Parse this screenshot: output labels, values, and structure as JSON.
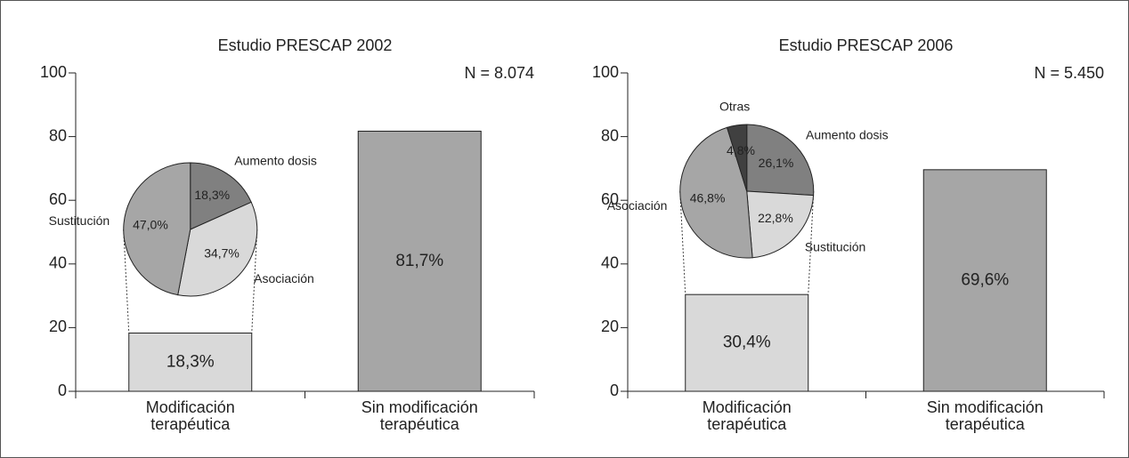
{
  "chart_data": [
    {
      "type": "bar",
      "title": "Estudio PRESCAP 2002",
      "annotation": "N = 8.074",
      "categories": [
        "Modificación terapéutica",
        "Sin modificación terapéutica"
      ],
      "values": [
        18.3,
        81.7
      ],
      "value_labels": [
        "18,3%",
        "81,7%"
      ],
      "colors": [
        "#d9d9d9",
        "#a6a6a6"
      ],
      "ylim": [
        0,
        100
      ],
      "yticks": [
        0,
        20,
        40,
        60,
        80,
        100
      ],
      "inset": {
        "type": "pie",
        "categories": [
          "Aumento dosis",
          "Asociación",
          "Sustitución"
        ],
        "values": [
          18.3,
          34.7,
          47.0
        ],
        "value_labels": [
          "18,3%",
          "34,7%",
          "47,0%"
        ],
        "colors": [
          "#808080",
          "#d9d9d9",
          "#a6a6a6"
        ]
      }
    },
    {
      "type": "bar",
      "title": "Estudio PRESCAP 2006",
      "annotation": "N = 5.450",
      "categories": [
        "Modificación terapéutica",
        "Sin modificación terapéutica"
      ],
      "values": [
        30.4,
        69.6
      ],
      "value_labels": [
        "30,4%",
        "69,6%"
      ],
      "colors": [
        "#d9d9d9",
        "#a6a6a6"
      ],
      "ylim": [
        0,
        100
      ],
      "yticks": [
        0,
        20,
        40,
        60,
        80,
        100
      ],
      "inset": {
        "type": "pie",
        "categories": [
          "Aumento dosis",
          "Sustitución",
          "Asociación",
          "Otras"
        ],
        "values": [
          26.1,
          22.8,
          46.8,
          4.8
        ],
        "value_labels": [
          "26,1%",
          "22,8%",
          "46,8%",
          "4,8%"
        ],
        "colors": [
          "#808080",
          "#d9d9d9",
          "#a6a6a6",
          "#404040"
        ]
      }
    }
  ]
}
